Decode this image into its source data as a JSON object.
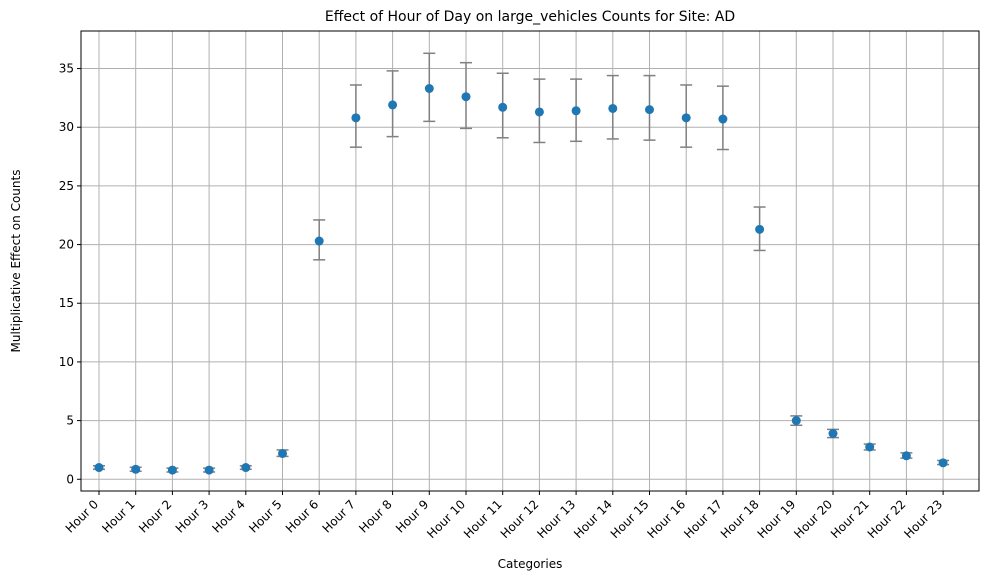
{
  "chart_data": {
    "type": "scatter",
    "title": "Effect of Hour of Day on large_vehicles Counts for Site: AD",
    "xlabel": "Categories",
    "ylabel": "Multiplicative Effect on Counts",
    "categories": [
      "Hour 0",
      "Hour 1",
      "Hour 2",
      "Hour 3",
      "Hour 4",
      "Hour 5",
      "Hour 6",
      "Hour 7",
      "Hour 8",
      "Hour 9",
      "Hour 10",
      "Hour 11",
      "Hour 12",
      "Hour 13",
      "Hour 14",
      "Hour 15",
      "Hour 16",
      "Hour 17",
      "Hour 18",
      "Hour 19",
      "Hour 20",
      "Hour 21",
      "Hour 22",
      "Hour 23"
    ],
    "values": [
      1.0,
      0.85,
      0.78,
      0.78,
      1.0,
      2.2,
      20.3,
      30.8,
      31.9,
      33.3,
      32.6,
      31.7,
      31.3,
      31.4,
      31.6,
      31.5,
      30.8,
      30.7,
      21.3,
      5.0,
      3.9,
      2.75,
      2.0,
      1.4
    ],
    "ci_lower": [
      0.85,
      0.68,
      0.62,
      0.62,
      0.85,
      1.95,
      18.7,
      28.3,
      29.2,
      30.5,
      29.9,
      29.1,
      28.7,
      28.8,
      29.0,
      28.9,
      28.3,
      28.1,
      19.5,
      4.6,
      3.55,
      2.5,
      1.8,
      1.25
    ],
    "ci_upper": [
      1.15,
      1.02,
      0.95,
      0.95,
      1.15,
      2.5,
      22.1,
      33.6,
      34.8,
      36.3,
      35.5,
      34.6,
      34.1,
      34.1,
      34.4,
      34.4,
      33.6,
      33.5,
      23.2,
      5.4,
      4.25,
      3.0,
      2.25,
      1.6
    ],
    "ylim": [
      -1.0,
      38.2
    ],
    "yticks": [
      0,
      5,
      10,
      15,
      20,
      25,
      30,
      35
    ],
    "grid": true,
    "colors": {
      "point": "#1f77b4",
      "errorbar": "#808080",
      "grid": "#b0b0b0"
    }
  }
}
